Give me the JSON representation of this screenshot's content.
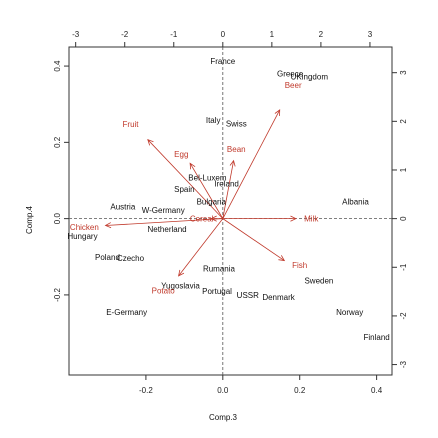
{
  "chart_data": {
    "type": "scatter",
    "xlabel": "Comp.3",
    "ylabel": "Comp.4",
    "xlim": [
      -0.4,
      0.44
    ],
    "ylim": [
      -0.41,
      0.45
    ],
    "xticks": [
      "-0.2",
      "0.0",
      "0.2",
      "0.4"
    ],
    "xtick_values": [
      -0.2,
      0.0,
      0.2,
      0.4
    ],
    "yticks": [
      "-0.2",
      "0.0",
      "0.2",
      "0.4"
    ],
    "ytick_values": [
      -0.2,
      0.0,
      0.2,
      0.4
    ],
    "xticks_top": [
      "-3",
      "-2",
      "-1",
      "0",
      "1",
      "2",
      "3"
    ],
    "xtick_values_top": [
      -3,
      -2,
      -1,
      0,
      1,
      2,
      3
    ],
    "yticks_right": [
      "-3",
      "-2",
      "-1",
      "0",
      "1",
      "2",
      "3"
    ],
    "ytick_values_right": [
      -3,
      -2,
      -1,
      0,
      1,
      2,
      3
    ],
    "secondary_scale": 7.84,
    "grid": false,
    "reference_lines": [
      0,
      0
    ],
    "observations": [
      {
        "label": "France",
        "x": 0.0,
        "y": 0.413
      },
      {
        "label": "Greece",
        "x": 0.175,
        "y": 0.38
      },
      {
        "label": "UKingdom",
        "x": 0.225,
        "y": 0.373
      },
      {
        "label": "Italy",
        "x": -0.025,
        "y": 0.258
      },
      {
        "label": "Swiss",
        "x": 0.035,
        "y": 0.25
      },
      {
        "label": "Bel-Luxem",
        "x": -0.04,
        "y": 0.108
      },
      {
        "label": "Ireland",
        "x": 0.01,
        "y": 0.092
      },
      {
        "label": "Spain",
        "x": -0.1,
        "y": 0.078
      },
      {
        "label": "Bulgaria",
        "x": -0.03,
        "y": 0.045
      },
      {
        "label": "Albania",
        "x": 0.345,
        "y": 0.045
      },
      {
        "label": "Austria",
        "x": -0.26,
        "y": 0.032
      },
      {
        "label": "W-Germany",
        "x": -0.155,
        "y": 0.022
      },
      {
        "label": "Netherland",
        "x": -0.145,
        "y": -0.027
      },
      {
        "label": "Hungary",
        "x": -0.365,
        "y": -0.045
      },
      {
        "label": "Poland",
        "x": -0.3,
        "y": -0.1
      },
      {
        "label": "Czecho",
        "x": -0.24,
        "y": -0.103
      },
      {
        "label": "Rumania",
        "x": -0.01,
        "y": -0.131
      },
      {
        "label": "Sweden",
        "x": 0.25,
        "y": -0.162
      },
      {
        "label": "Yugoslavia",
        "x": -0.11,
        "y": -0.175
      },
      {
        "label": "Portugal",
        "x": -0.015,
        "y": -0.19
      },
      {
        "label": "USSR",
        "x": 0.065,
        "y": -0.2
      },
      {
        "label": "Denmark",
        "x": 0.145,
        "y": -0.205
      },
      {
        "label": "E-Germany",
        "x": -0.25,
        "y": -0.245
      },
      {
        "label": "Norway",
        "x": 0.33,
        "y": -0.245
      },
      {
        "label": "Finland",
        "x": 0.4,
        "y": -0.31
      }
    ],
    "variables": [
      {
        "label": "Fruit",
        "x": -0.24,
        "y": 0.248,
        "tip_x": -0.195,
        "tip_y": 0.207
      },
      {
        "label": "Egg",
        "x": -0.108,
        "y": 0.17,
        "tip_x": -0.085,
        "tip_y": 0.145
      },
      {
        "label": "Bean",
        "x": 0.035,
        "y": 0.182,
        "tip_x": 0.028,
        "tip_y": 0.152
      },
      {
        "label": "Beer",
        "x": 0.183,
        "y": 0.35,
        "tip_x": 0.148,
        "tip_y": 0.285
      },
      {
        "label": "Milk",
        "x": 0.23,
        "y": 0.0,
        "tip_x": 0.19,
        "tip_y": 0.0
      },
      {
        "label": "Cereal",
        "x": -0.055,
        "y": 0.0,
        "tip_x": -0.03,
        "tip_y": 0.0
      },
      {
        "label": "Chicken",
        "x": -0.36,
        "y": -0.022,
        "tip_x": -0.305,
        "tip_y": -0.018
      },
      {
        "label": "Fish",
        "x": 0.2,
        "y": -0.122,
        "tip_x": 0.16,
        "tip_y": -0.11
      },
      {
        "label": "Potato",
        "x": -0.155,
        "y": -0.188,
        "tip_x": -0.115,
        "tip_y": -0.15
      }
    ]
  }
}
